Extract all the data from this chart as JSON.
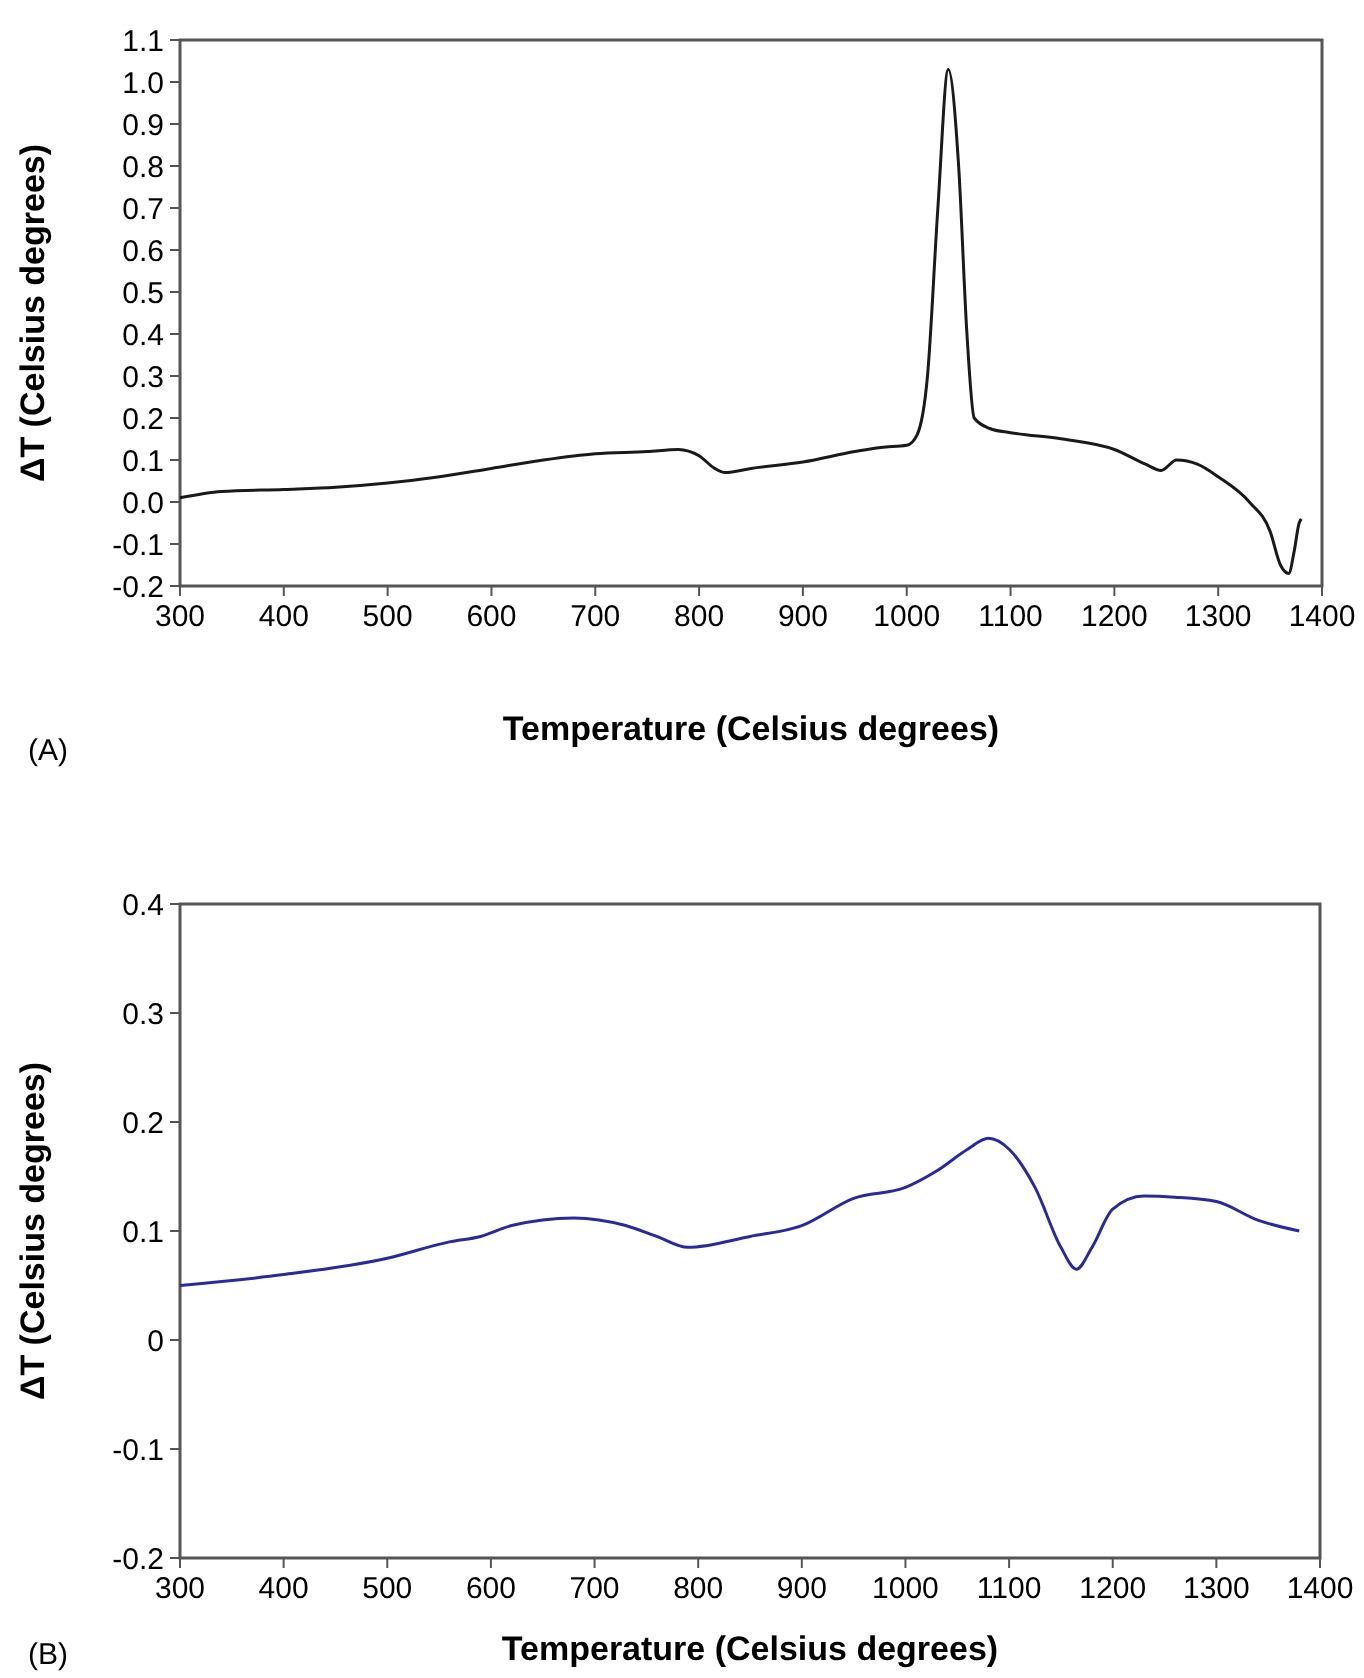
{
  "chart_data": [
    {
      "type": "line",
      "xlabel": "Temperature (Celsius degrees)",
      "ylabel": "ΔT (Celsius degrees)",
      "annotations": [
        "(A)"
      ],
      "xlim": [
        300,
        1400
      ],
      "xticks": [
        300,
        400,
        500,
        600,
        700,
        800,
        900,
        1000,
        1100,
        1200,
        1300,
        1400
      ],
      "ylim": [
        -0.2,
        1.1
      ],
      "yticks": [
        -0.2,
        -0.1,
        {
          "value": 0,
          "label": "0.0"
        },
        0.1,
        0.2,
        0.3,
        0.4,
        0.5,
        0.6,
        0.7,
        0.8,
        0.9,
        {
          "value": 1,
          "label": "1.0"
        },
        1.1
      ],
      "grid": false,
      "series": [
        {
          "color": "#1a1a1a",
          "x": [
            300,
            340,
            400,
            450,
            500,
            550,
            600,
            650,
            700,
            750,
            780,
            800,
            815,
            825,
            850,
            900,
            950,
            975,
            1000,
            1010,
            1020,
            1030,
            1040,
            1050,
            1058,
            1065,
            1080,
            1100,
            1150,
            1200,
            1230,
            1245,
            1260,
            1280,
            1300,
            1330,
            1350,
            1360,
            1368,
            1373,
            1378,
            1380
          ],
          "values": [
            0.01,
            0.025,
            0.03,
            0.035,
            0.045,
            0.06,
            0.08,
            0.1,
            0.115,
            0.12,
            0.125,
            0.11,
            0.08,
            0.07,
            0.08,
            0.095,
            0.12,
            0.13,
            0.135,
            0.16,
            0.3,
            0.7,
            1.03,
            0.8,
            0.4,
            0.2,
            0.175,
            0.165,
            0.15,
            0.125,
            0.09,
            0.075,
            0.1,
            0.09,
            0.06,
            0.0,
            -0.07,
            -0.15,
            -0.17,
            -0.12,
            -0.05,
            -0.04
          ]
        }
      ]
    },
    {
      "type": "line",
      "xlabel": "Temperature (Celsius degrees)",
      "ylabel": "ΔT (Celsius degrees)",
      "annotations": [
        "(B)"
      ],
      "xlim": [
        300,
        1400
      ],
      "xticks": [
        300,
        400,
        500,
        600,
        700,
        800,
        900,
        1000,
        1100,
        1200,
        1300,
        1400
      ],
      "ylim": [
        -0.2,
        0.4
      ],
      "yticks": [
        -0.2,
        -0.1,
        0,
        0.1,
        0.2,
        0.3,
        0.4
      ],
      "grid": false,
      "series": [
        {
          "color": "#2a2aa0",
          "x": [
            300,
            400,
            500,
            560,
            590,
            620,
            680,
            730,
            760,
            790,
            850,
            900,
            950,
            1000,
            1030,
            1060,
            1080,
            1100,
            1125,
            1150,
            1165,
            1180,
            1200,
            1230,
            1260,
            1300,
            1340,
            1380
          ],
          "values": [
            0.05,
            0.06,
            0.075,
            0.09,
            0.095,
            0.105,
            0.112,
            0.105,
            0.095,
            0.085,
            0.095,
            0.105,
            0.13,
            0.14,
            0.155,
            0.175,
            0.185,
            0.175,
            0.14,
            0.085,
            0.065,
            0.085,
            0.12,
            0.132,
            0.131,
            0.127,
            0.11,
            0.1
          ]
        }
      ]
    }
  ]
}
